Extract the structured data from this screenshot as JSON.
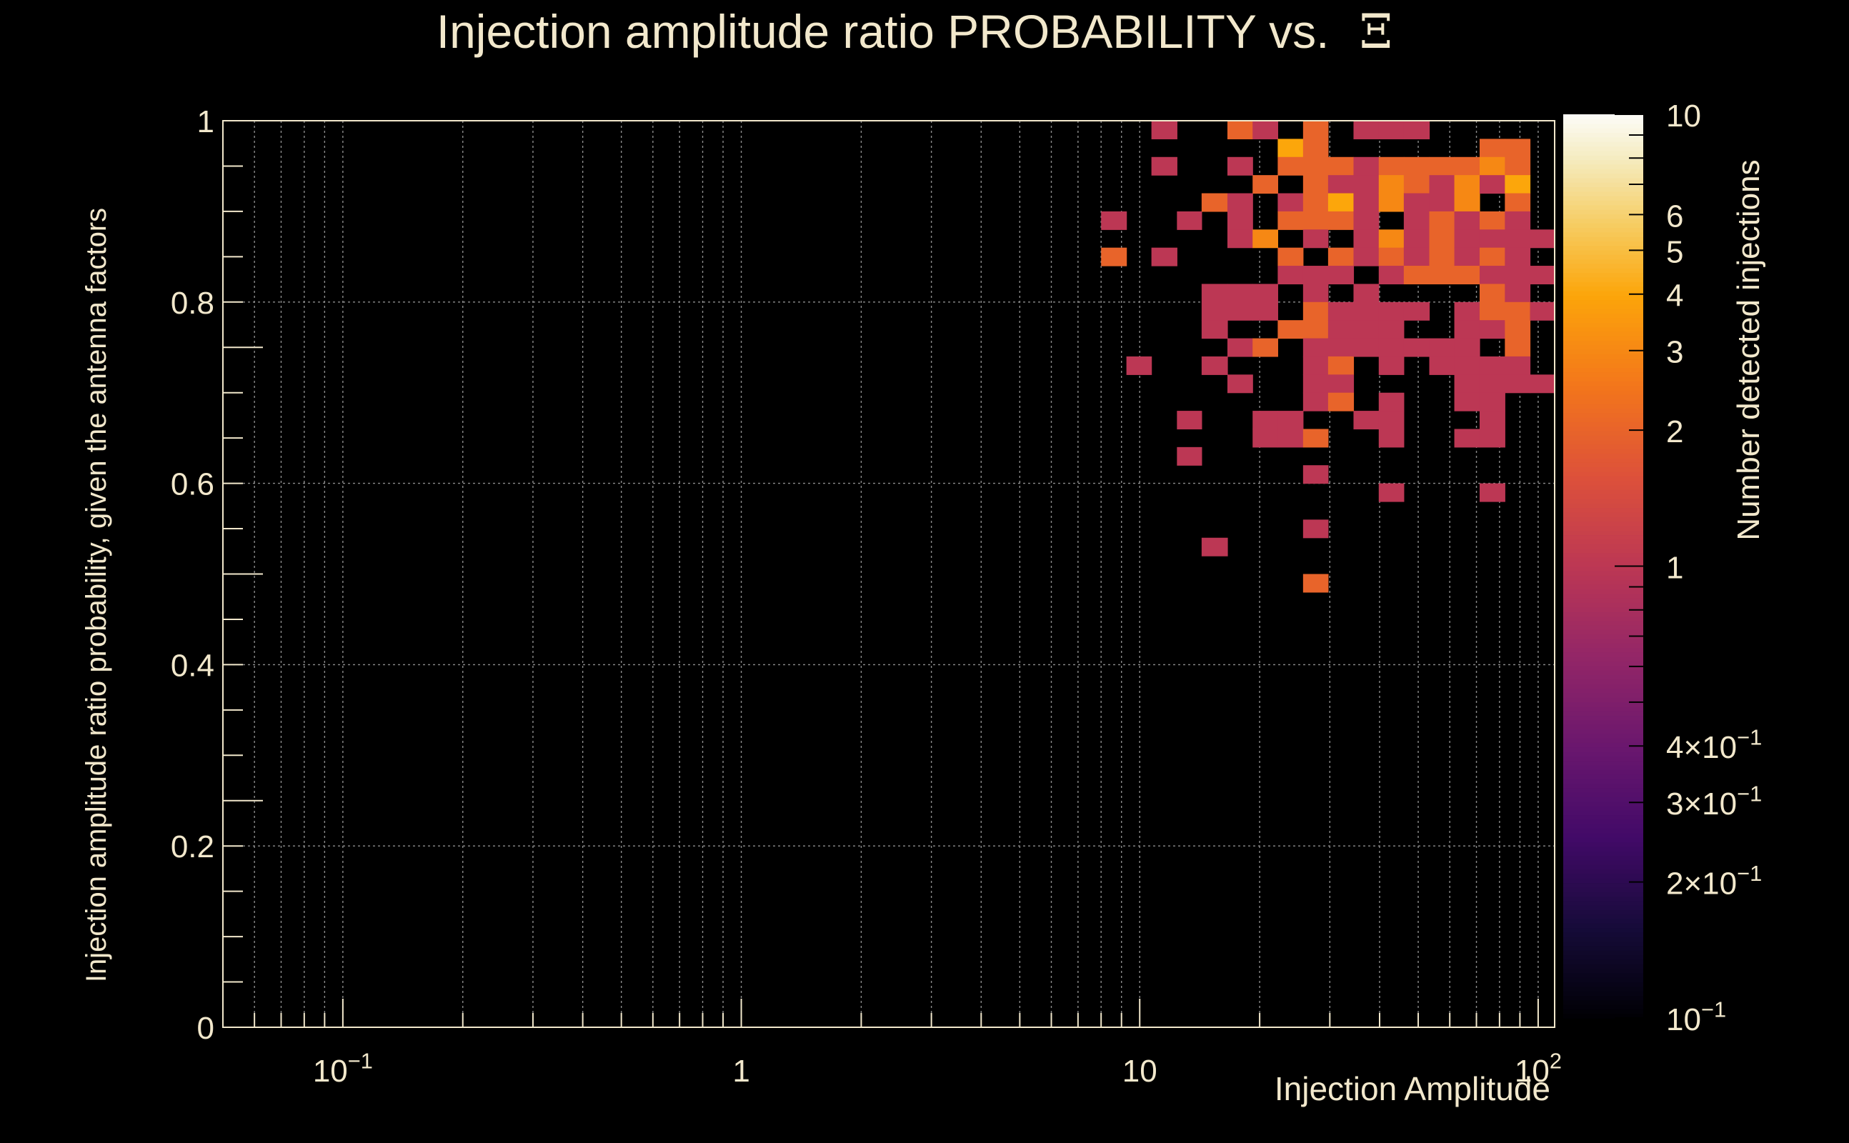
{
  "colors": {
    "background": "#000000",
    "text": "#f2e8cc",
    "axis": "#f2e8cc",
    "grid": "#8c8c8c"
  },
  "chart_data": {
    "type": "heatmap",
    "title": "Injection amplitude ratio PROBABILITY vs.",
    "title_symbol": "Ξ",
    "xlabel": "Injection Amplitude",
    "ylabel": "Injection amplitude ratio probability, given the antenna factors",
    "zlabel": "Number detected injections",
    "x_scale": "log",
    "xlim": [
      0.05,
      110
    ],
    "ylim": [
      0,
      1
    ],
    "z_scale": "log",
    "zlim": [
      0.1,
      10
    ],
    "x_ticks": [
      {
        "value": 0.1,
        "base": "10",
        "exp": "−1"
      },
      {
        "value": 1,
        "base": "1",
        "exp": ""
      },
      {
        "value": 10,
        "base": "10",
        "exp": ""
      },
      {
        "value": 100,
        "base": "10",
        "exp": "2"
      }
    ],
    "y_ticks": [
      {
        "value": 0,
        "label": "0"
      },
      {
        "value": 0.2,
        "label": "0.2"
      },
      {
        "value": 0.4,
        "label": "0.4"
      },
      {
        "value": 0.6,
        "label": "0.6"
      },
      {
        "value": 0.8,
        "label": "0.8"
      },
      {
        "value": 1,
        "label": "1"
      }
    ],
    "z_ticks": [
      {
        "value": 10,
        "base": "10",
        "exp": ""
      },
      {
        "value": 6,
        "base": "6",
        "exp": ""
      },
      {
        "value": 5,
        "base": "5",
        "exp": ""
      },
      {
        "value": 4,
        "base": "4",
        "exp": ""
      },
      {
        "value": 3,
        "base": "3",
        "exp": ""
      },
      {
        "value": 2,
        "base": "2",
        "exp": ""
      },
      {
        "value": 1,
        "base": "1",
        "exp": ""
      },
      {
        "value": 0.4,
        "base": "4×10",
        "exp": "−1"
      },
      {
        "value": 0.3,
        "base": "3×10",
        "exp": "−1"
      },
      {
        "value": 0.2,
        "base": "2×10",
        "exp": "−1"
      },
      {
        "value": 0.1,
        "base": "10",
        "exp": "−1"
      }
    ],
    "bins": {
      "x_edges": [
        8.0,
        9.26,
        10.7,
        12.4,
        14.3,
        16.6,
        19.2,
        22.2,
        25.7,
        29.7,
        34.4,
        39.8,
        46.0,
        53.3,
        61.6,
        71.3,
        82.5,
        95.4,
        110.0
      ],
      "y_count": 50
    },
    "cells": [
      [
        0,
        44,
        1
      ],
      [
        0,
        42,
        2
      ],
      [
        1,
        36,
        1
      ],
      [
        2,
        49,
        1
      ],
      [
        2,
        47,
        1
      ],
      [
        2,
        42,
        1
      ],
      [
        3,
        44,
        1
      ],
      [
        3,
        33,
        1
      ],
      [
        3,
        31,
        1
      ],
      [
        4,
        45,
        2
      ],
      [
        4,
        40,
        1
      ],
      [
        4,
        39,
        1
      ],
      [
        4,
        38,
        1
      ],
      [
        4,
        36,
        1
      ],
      [
        4,
        26,
        1
      ],
      [
        5,
        49,
        2
      ],
      [
        5,
        47,
        1
      ],
      [
        5,
        45,
        1
      ],
      [
        5,
        44,
        1
      ],
      [
        5,
        43,
        1
      ],
      [
        5,
        40,
        1
      ],
      [
        5,
        39,
        1
      ],
      [
        5,
        37,
        1
      ],
      [
        5,
        35,
        1
      ],
      [
        6,
        49,
        1
      ],
      [
        6,
        46,
        2
      ],
      [
        6,
        43,
        3
      ],
      [
        6,
        40,
        1
      ],
      [
        6,
        39,
        1
      ],
      [
        6,
        37,
        2
      ],
      [
        6,
        33,
        1
      ],
      [
        6,
        32,
        1
      ],
      [
        7,
        48,
        4
      ],
      [
        7,
        47,
        2
      ],
      [
        7,
        45,
        1
      ],
      [
        7,
        44,
        2
      ],
      [
        7,
        42,
        2
      ],
      [
        7,
        41,
        1
      ],
      [
        7,
        38,
        2
      ],
      [
        7,
        33,
        1
      ],
      [
        7,
        32,
        1
      ],
      [
        8,
        49,
        2
      ],
      [
        8,
        48,
        2
      ],
      [
        8,
        47,
        2
      ],
      [
        8,
        46,
        2
      ],
      [
        8,
        45,
        2
      ],
      [
        8,
        44,
        2
      ],
      [
        8,
        43,
        1
      ],
      [
        8,
        41,
        1
      ],
      [
        8,
        40,
        1
      ],
      [
        8,
        39,
        2
      ],
      [
        8,
        38,
        2
      ],
      [
        8,
        37,
        1
      ],
      [
        8,
        36,
        1
      ],
      [
        8,
        35,
        1
      ],
      [
        8,
        34,
        1
      ],
      [
        8,
        32,
        2
      ],
      [
        8,
        30,
        1
      ],
      [
        8,
        27,
        1
      ],
      [
        8,
        24,
        2
      ],
      [
        9,
        47,
        2
      ],
      [
        9,
        46,
        1
      ],
      [
        9,
        45,
        4
      ],
      [
        9,
        44,
        2
      ],
      [
        9,
        42,
        2
      ],
      [
        9,
        41,
        1
      ],
      [
        9,
        39,
        1
      ],
      [
        9,
        38,
        1
      ],
      [
        9,
        37,
        1
      ],
      [
        9,
        36,
        2
      ],
      [
        9,
        35,
        1
      ],
      [
        9,
        34,
        2
      ],
      [
        10,
        49,
        1
      ],
      [
        10,
        47,
        1
      ],
      [
        10,
        46,
        1
      ],
      [
        10,
        45,
        1
      ],
      [
        10,
        44,
        1
      ],
      [
        10,
        43,
        1
      ],
      [
        10,
        42,
        1
      ],
      [
        10,
        40,
        1
      ],
      [
        10,
        39,
        1
      ],
      [
        10,
        38,
        1
      ],
      [
        10,
        37,
        1
      ],
      [
        10,
        33,
        1
      ],
      [
        11,
        49,
        1
      ],
      [
        11,
        47,
        2
      ],
      [
        11,
        46,
        3
      ],
      [
        11,
        45,
        3
      ],
      [
        11,
        43,
        3
      ],
      [
        11,
        42,
        2
      ],
      [
        11,
        41,
        1
      ],
      [
        11,
        39,
        1
      ],
      [
        11,
        38,
        1
      ],
      [
        11,
        37,
        1
      ],
      [
        11,
        36,
        1
      ],
      [
        11,
        34,
        1
      ],
      [
        11,
        33,
        1
      ],
      [
        11,
        32,
        1
      ],
      [
        11,
        29,
        1
      ],
      [
        12,
        49,
        1
      ],
      [
        12,
        47,
        2
      ],
      [
        12,
        46,
        2
      ],
      [
        12,
        45,
        1
      ],
      [
        12,
        44,
        1
      ],
      [
        12,
        43,
        1
      ],
      [
        12,
        42,
        1
      ],
      [
        12,
        41,
        2
      ],
      [
        12,
        39,
        1
      ],
      [
        12,
        37,
        1
      ],
      [
        13,
        47,
        2
      ],
      [
        13,
        46,
        1
      ],
      [
        13,
        45,
        1
      ],
      [
        13,
        44,
        2
      ],
      [
        13,
        43,
        2
      ],
      [
        13,
        42,
        2
      ],
      [
        13,
        41,
        2
      ],
      [
        13,
        37,
        1
      ],
      [
        13,
        36,
        1
      ],
      [
        14,
        47,
        2
      ],
      [
        14,
        46,
        3
      ],
      [
        14,
        45,
        3
      ],
      [
        14,
        44,
        1
      ],
      [
        14,
        43,
        1
      ],
      [
        14,
        42,
        1
      ],
      [
        14,
        41,
        2
      ],
      [
        14,
        39,
        1
      ],
      [
        14,
        38,
        1
      ],
      [
        14,
        37,
        1
      ],
      [
        14,
        36,
        1
      ],
      [
        14,
        35,
        1
      ],
      [
        14,
        34,
        1
      ],
      [
        14,
        32,
        1
      ],
      [
        15,
        48,
        2
      ],
      [
        15,
        47,
        3
      ],
      [
        15,
        46,
        1
      ],
      [
        15,
        44,
        2
      ],
      [
        15,
        43,
        1
      ],
      [
        15,
        42,
        2
      ],
      [
        15,
        41,
        1
      ],
      [
        15,
        40,
        2
      ],
      [
        15,
        39,
        2
      ],
      [
        15,
        38,
        1
      ],
      [
        15,
        36,
        1
      ],
      [
        15,
        35,
        1
      ],
      [
        15,
        34,
        1
      ],
      [
        15,
        33,
        1
      ],
      [
        15,
        32,
        1
      ],
      [
        15,
        29,
        1
      ],
      [
        16,
        48,
        2
      ],
      [
        16,
        47,
        2
      ],
      [
        16,
        46,
        4
      ],
      [
        16,
        45,
        2
      ],
      [
        16,
        44,
        1
      ],
      [
        16,
        43,
        1
      ],
      [
        16,
        42,
        1
      ],
      [
        16,
        41,
        1
      ],
      [
        16,
        40,
        1
      ],
      [
        16,
        39,
        2
      ],
      [
        16,
        38,
        2
      ],
      [
        16,
        37,
        2
      ],
      [
        16,
        36,
        1
      ],
      [
        16,
        35,
        1
      ],
      [
        17,
        43,
        1
      ],
      [
        17,
        41,
        1
      ],
      [
        17,
        39,
        1
      ],
      [
        17,
        35,
        1
      ]
    ]
  }
}
